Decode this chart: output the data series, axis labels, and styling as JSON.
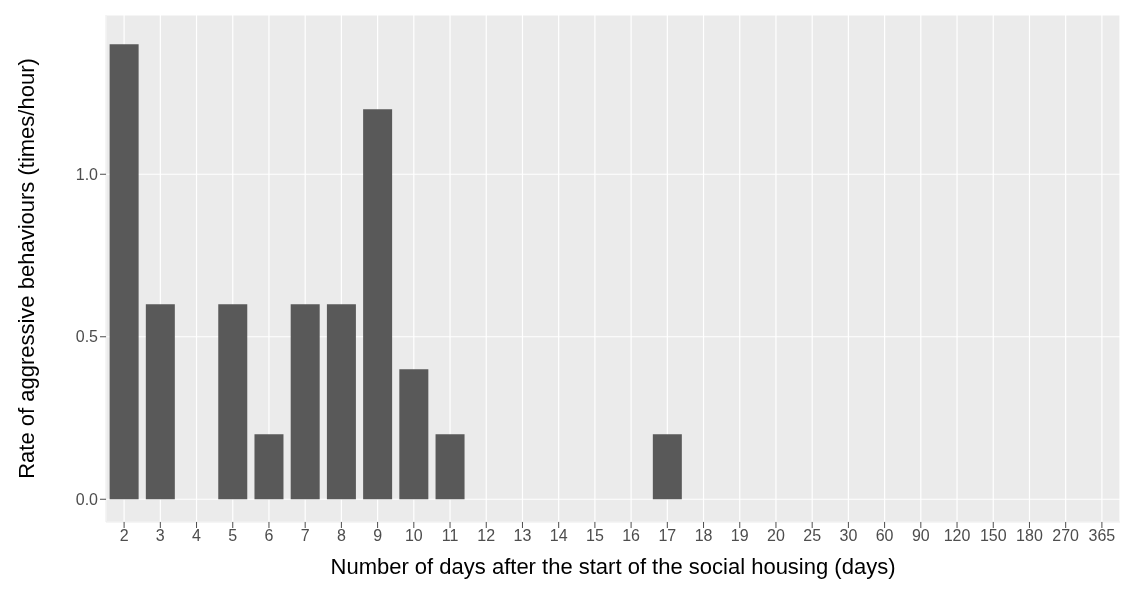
{
  "chart_data": {
    "type": "bar",
    "xlabel": "Number of days after the start of the social housing (days)",
    "ylabel": "Rate of aggressive behaviours (times/hour)",
    "categories": [
      "2",
      "3",
      "4",
      "5",
      "6",
      "7",
      "8",
      "9",
      "10",
      "11",
      "12",
      "13",
      "14",
      "15",
      "16",
      "17",
      "18",
      "19",
      "20",
      "25",
      "30",
      "60",
      "90",
      "120",
      "150",
      "180",
      "270",
      "365"
    ],
    "values": [
      1.4,
      0.6,
      0,
      0.6,
      0.2,
      0.6,
      0.6,
      1.2,
      0.4,
      0.2,
      0,
      0,
      0,
      0,
      0,
      0.2,
      0,
      0,
      0,
      0,
      0,
      0,
      0,
      0,
      0,
      0,
      0,
      0
    ],
    "color": "#595959",
    "ylim": [
      -0.07,
      1.49
    ],
    "yticks": [
      {
        "value": 0,
        "label": "0.0"
      },
      {
        "value": 0.5,
        "label": "0.5"
      },
      {
        "value": 1,
        "label": "1.0"
      }
    ],
    "grid": true
  }
}
